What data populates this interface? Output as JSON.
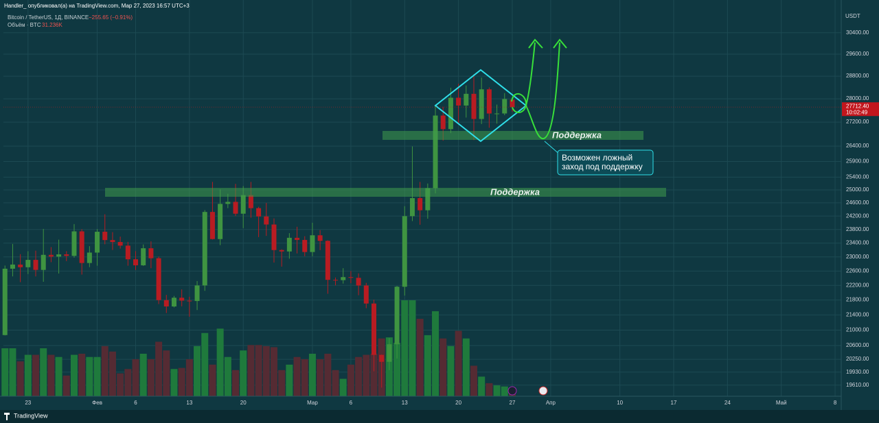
{
  "header": {
    "publisher": "Handler_ опубликовал(а) на TradingView.com, Мар 27, 2023 16:57 UTC+3"
  },
  "chart_data": {
    "type": "candlestick",
    "title": "Bitcoin / TetherUS, 1Д, BINANCE",
    "change_label": "−255.65 (−0.91%)",
    "y_axis_label": "USDT",
    "log_scale": true,
    "grid": true,
    "up_color": "#3f9441",
    "down_color": "#b81c22",
    "ylim": [
      19340,
      31260
    ],
    "yticks": [
      {
        "value": 30400,
        "label": "30400.00"
      },
      {
        "value": 29600,
        "label": "29600.00"
      },
      {
        "value": 28800,
        "label": "28800.00"
      },
      {
        "value": 28000,
        "label": "28000.00"
      },
      {
        "value": 27200,
        "label": "27200.00"
      },
      {
        "value": 26400,
        "label": "26400.00"
      },
      {
        "value": 25900,
        "label": "25900.00"
      },
      {
        "value": 25400,
        "label": "25400.00"
      },
      {
        "value": 25000,
        "label": "25000.00"
      },
      {
        "value": 24600,
        "label": "24600.00"
      },
      {
        "value": 24200,
        "label": "24200.00"
      },
      {
        "value": 23800,
        "label": "23800.00"
      },
      {
        "value": 23400,
        "label": "23400.00"
      },
      {
        "value": 23000,
        "label": "23000.00"
      },
      {
        "value": 22600,
        "label": "22600.00"
      },
      {
        "value": 22200,
        "label": "22200.00"
      },
      {
        "value": 21800,
        "label": "21800.00"
      },
      {
        "value": 21400,
        "label": "21400.00"
      },
      {
        "value": 21000,
        "label": "21000.00"
      },
      {
        "value": 20600,
        "label": "20600.00"
      },
      {
        "value": 20250,
        "label": "20250.00"
      },
      {
        "value": 19930,
        "label": "19930.00"
      },
      {
        "value": 19610,
        "label": "19610.00"
      }
    ],
    "xlim": [
      -3.2,
      105.8
    ],
    "xticks": [
      {
        "value": 0,
        "label": "23"
      },
      {
        "value": 9,
        "label": "Фев"
      },
      {
        "value": 14,
        "label": "6"
      },
      {
        "value": 21,
        "label": "13"
      },
      {
        "value": 28,
        "label": "20"
      },
      {
        "value": 37,
        "label": "Мар"
      },
      {
        "value": 42,
        "label": "6"
      },
      {
        "value": 49,
        "label": "13"
      },
      {
        "value": 56,
        "label": "20"
      },
      {
        "value": 63,
        "label": "27"
      },
      {
        "value": 68,
        "label": "Апр"
      },
      {
        "value": 77,
        "label": "10"
      },
      {
        "value": 84,
        "label": "17"
      },
      {
        "value": 91,
        "label": "24"
      },
      {
        "value": 98,
        "label": "Май"
      },
      {
        "value": 105,
        "label": "8"
      }
    ],
    "x": [
      -3,
      -2,
      -1,
      0,
      1,
      2,
      3,
      4,
      5,
      6,
      7,
      8,
      9,
      10,
      11,
      12,
      13,
      14,
      15,
      16,
      17,
      18,
      19,
      20,
      21,
      22,
      23,
      24,
      25,
      26,
      27,
      28,
      29,
      30,
      31,
      32,
      33,
      34,
      35,
      36,
      37,
      38,
      39,
      40,
      41,
      42,
      43,
      44,
      45,
      46,
      47,
      48,
      49,
      50,
      51,
      52,
      53,
      54,
      55,
      56,
      57,
      58,
      59,
      60,
      61,
      62,
      63
    ],
    "open": [
      20870,
      22666,
      22783,
      22707,
      22916,
      22632,
      23060,
      23009,
      23074,
      23031,
      23743,
      22827,
      23125,
      23732,
      23488,
      23431,
      23326,
      22933,
      22762,
      23250,
      22963,
      21797,
      21626,
      21862,
      21783,
      21773,
      22199,
      24324,
      23517,
      24569,
      24631,
      24271,
      24838,
      24439,
      24188,
      23947,
      23198,
      23157,
      23554,
      23492,
      23141,
      23628,
      23465,
      22354,
      22346,
      22430,
      22410,
      22197,
      21705,
      20362,
      20187,
      20632,
      22163,
      24197,
      24746,
      24375,
      25052,
      27423,
      26965,
      28038,
      27767,
      28175,
      27307,
      28333,
      27493,
      27494,
      27968.05
    ],
    "high": [
      22755,
      23375,
      23080,
      23165,
      23180,
      23816,
      23282,
      23500,
      23165,
      23960,
      23810,
      23310,
      23812,
      24255,
      23720,
      23590,
      23435,
      23165,
      23360,
      23450,
      23010,
      21940,
      21910,
      22090,
      21890,
      22320,
      24380,
      25250,
      25020,
      24880,
      25190,
      25120,
      25250,
      24480,
      24600,
      24130,
      23220,
      23690,
      23880,
      23600,
      24000,
      23780,
      23480,
      22420,
      22680,
      22600,
      22535,
      22270,
      21810,
      20370,
      20790,
      22185,
      24500,
      26390,
      25250,
      25200,
      27760,
      27725,
      28390,
      28530,
      28470,
      28870,
      28750,
      28400,
      27800,
      28200,
      28040
    ],
    "low": [
      20860,
      22450,
      22290,
      22515,
      22450,
      22300,
      22850,
      22530,
      22880,
      22980,
      22500,
      22710,
      22750,
      23365,
      23200,
      23240,
      22750,
      22630,
      22745,
      22680,
      21690,
      21450,
      21600,
      21630,
      21350,
      21530,
      22050,
      23505,
      23340,
      24440,
      24200,
      23840,
      24150,
      23575,
      23610,
      22840,
      22725,
      22950,
      23100,
      23020,
      23020,
      23195,
      21970,
      22200,
      22250,
      22260,
      21930,
      21580,
      19950,
      19550,
      19980,
      20270,
      21920,
      24050,
      23940,
      24120,
      24890,
      26580,
      26830,
      27130,
      27355,
      26600,
      27135,
      27010,
      27150,
      27435,
      27550
    ],
    "close": [
      22666,
      22783,
      22707,
      22916,
      22632,
      23060,
      23009,
      23074,
      23031,
      23743,
      22827,
      23125,
      23732,
      23488,
      23431,
      23326,
      22933,
      22762,
      23250,
      22963,
      21797,
      21626,
      21862,
      21783,
      21773,
      22199,
      24324,
      23517,
      24569,
      24631,
      24271,
      24838,
      24439,
      24188,
      23947,
      23198,
      23157,
      23554,
      23492,
      23141,
      23628,
      23465,
      22354,
      22346,
      22430,
      22410,
      22197,
      21705,
      20362,
      20187,
      20632,
      22163,
      24197,
      24746,
      24375,
      25052,
      27423,
      26965,
      28038,
      27767,
      28175,
      27307,
      28333,
      27493,
      27494,
      27992,
      27712.4
    ],
    "last_price": {
      "value": 27712.4,
      "label": "27712.40"
    },
    "countdown": "10:02:49",
    "volume": {
      "name": "Объём · BTC",
      "last_label": "31.236K",
      "up_color": "#1f7a3c",
      "down_color": "#552b33",
      "values": [
        220000,
        220000,
        160000,
        190000,
        190000,
        220000,
        190000,
        180000,
        95000,
        190000,
        195000,
        180000,
        180000,
        230000,
        205000,
        105000,
        125000,
        170000,
        195000,
        170000,
        250000,
        210000,
        125000,
        130000,
        170000,
        230000,
        290000,
        145000,
        310000,
        180000,
        120000,
        210000,
        235000,
        235000,
        230000,
        225000,
        120000,
        145000,
        180000,
        170000,
        195000,
        170000,
        195000,
        120000,
        80000,
        145000,
        180000,
        190000,
        195000,
        265000,
        270000,
        245000,
        440000,
        440000,
        355000,
        280000,
        390000,
        265000,
        230000,
        300000,
        265000,
        140000,
        90000,
        60000,
        50000,
        45000,
        31236
      ]
    }
  },
  "annotations": {
    "support_upper": "Поддержка",
    "support_lower": "Поддержка",
    "callout_line1": "Возможен ложный",
    "callout_line2": "заход под поддержку"
  },
  "footer": {
    "brand": "TradingView"
  }
}
